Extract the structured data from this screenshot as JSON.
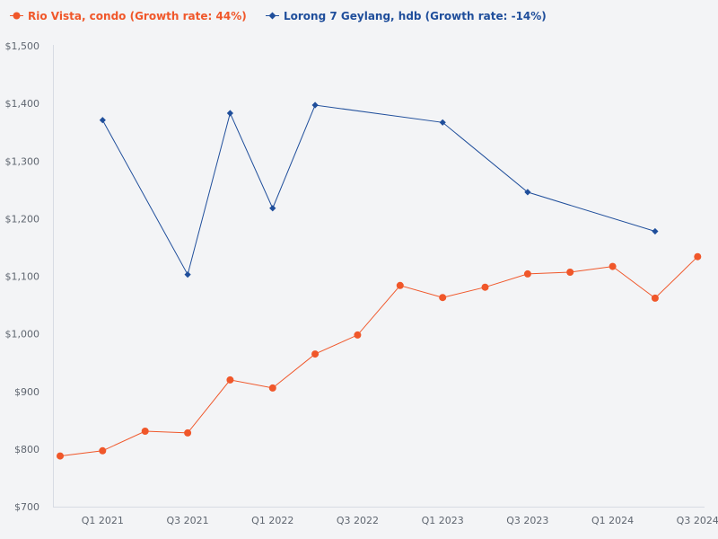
{
  "colors": {
    "rio": "#f0572a",
    "lorong": "#1f4e9b",
    "axis": "#d7dbe3",
    "background": "#f3f4f6"
  },
  "chart_data": {
    "type": "line",
    "legend_position": "top-left",
    "x": [
      "Q4 2020",
      "Q1 2021",
      "Q2 2021",
      "Q3 2021",
      "Q4 2021",
      "Q1 2022",
      "Q2 2022",
      "Q3 2022",
      "Q4 2022",
      "Q1 2023",
      "Q2 2023",
      "Q3 2023",
      "Q4 2023",
      "Q1 2024",
      "Q2 2024",
      "Q3 2024"
    ],
    "x_tick_labels": [
      "Q1 2021",
      "Q3 2021",
      "Q1 2022",
      "Q3 2022",
      "Q1 2023",
      "Q3 2023",
      "Q1 2024",
      "Q3 2024"
    ],
    "ylim": [
      700,
      1500
    ],
    "y_ticks": [
      700,
      800,
      900,
      1000,
      1100,
      1200,
      1300,
      1400,
      1500
    ],
    "y_tick_labels": [
      "$700",
      "$800",
      "$900",
      "$1,000",
      "$1,100",
      "$1,200",
      "$1,300",
      "$1,400",
      "$1,500"
    ],
    "series": [
      {
        "name": "Rio Vista, condo (Growth rate: 44%)",
        "color_key": "rio",
        "marker": "circle",
        "values": [
          788,
          797,
          831,
          828,
          920,
          906,
          965,
          998,
          1084,
          1063,
          1081,
          1104,
          1107,
          1117,
          1062,
          1134
        ]
      },
      {
        "name": "Lorong 7 Geylang, hdb (Growth rate: -14%)",
        "color_key": "lorong",
        "marker": "diamond",
        "values": [
          null,
          1371,
          null,
          1103,
          1383,
          1218,
          1397,
          null,
          null,
          1367,
          null,
          1246,
          null,
          null,
          1178,
          null
        ]
      }
    ]
  }
}
